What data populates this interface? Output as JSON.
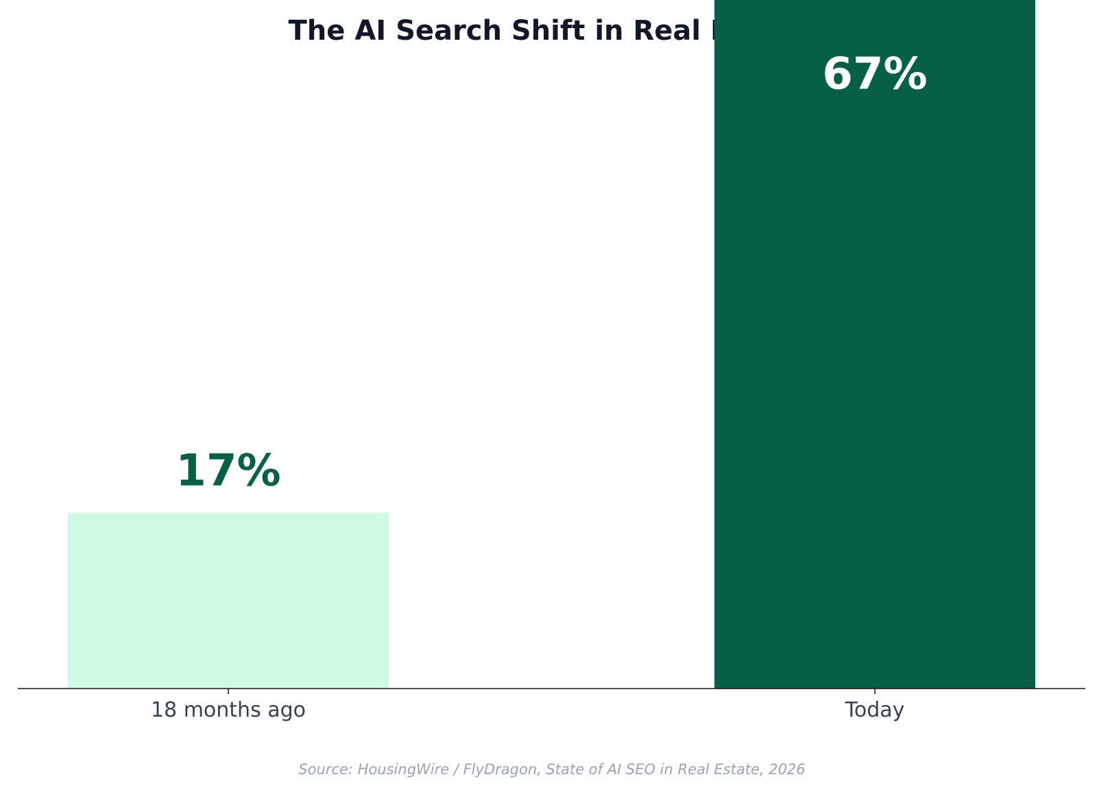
{
  "chart_data": {
    "type": "bar",
    "title": "The AI Search Shift in Real Estate",
    "xlabel": "",
    "ylabel": "",
    "categories": [
      "18 months ago",
      "Today"
    ],
    "values": [
      17,
      67
    ],
    "value_labels": [
      "17%",
      "67%"
    ],
    "ylim": [
      0,
      80
    ],
    "grid": false,
    "bar_colors": [
      "#d1fae5",
      "#065f46"
    ],
    "label_colors": [
      "#065f46",
      "#ffffff"
    ]
  },
  "source": "Source: HousingWire / FlyDragon, State of AI SEO in Real Estate, 2026"
}
